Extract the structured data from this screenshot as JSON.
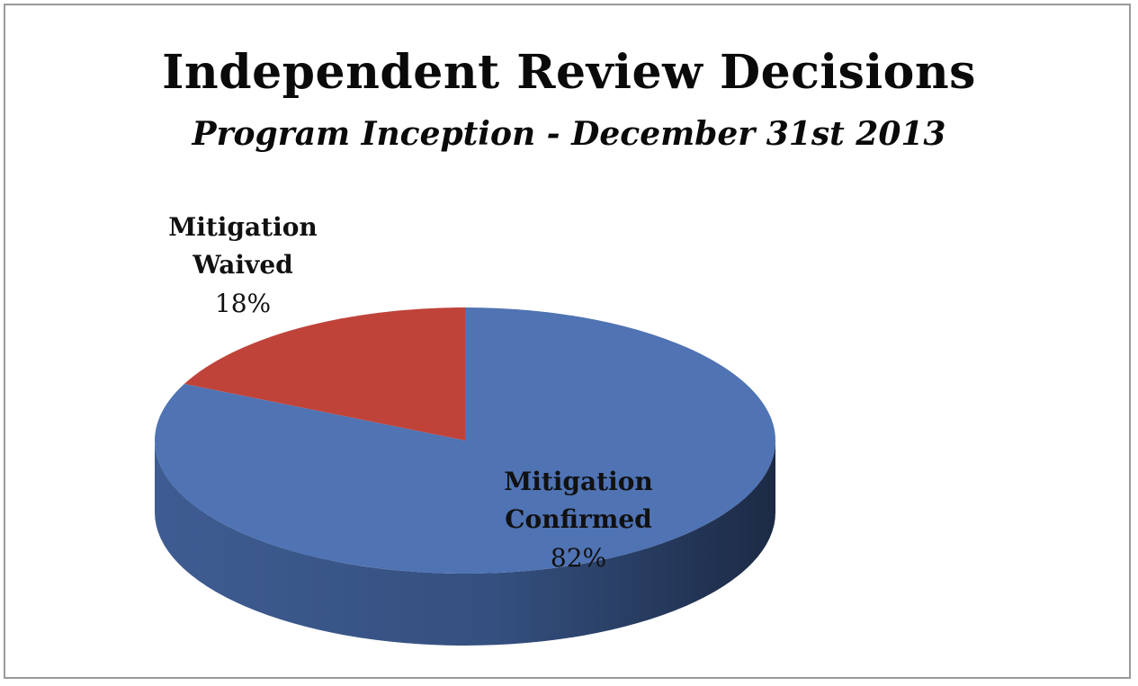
{
  "chart_data": {
    "type": "pie",
    "title": "Independent Review Decisions",
    "subtitle": "Program Inception - December 31st 2013",
    "slices": [
      {
        "label_lines": [
          "Mitigation",
          "Waived"
        ],
        "value": 18,
        "value_label": "18%",
        "color": "#c0433a",
        "side_color": "#7a2520"
      },
      {
        "label_lines": [
          "Mitigation",
          "Confirmed"
        ],
        "value": 82,
        "value_label": "82%",
        "color": "#4f73b3",
        "side_color": "#2c3e62"
      }
    ],
    "legend": "none"
  }
}
